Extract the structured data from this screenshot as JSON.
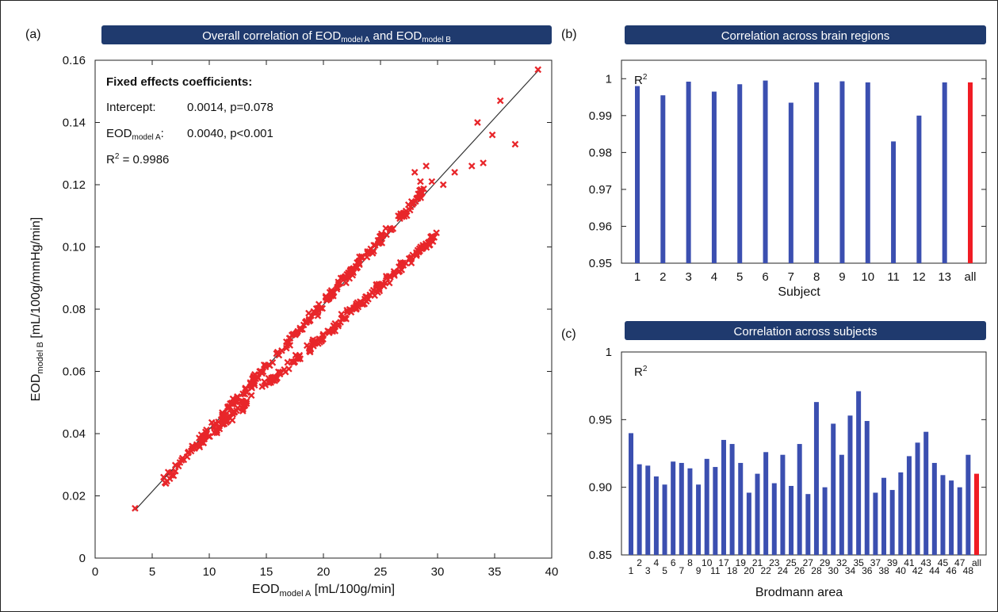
{
  "panel_labels": {
    "a": "(a)",
    "b": "(b)",
    "c": "(c)"
  },
  "colors": {
    "banner": "#1f3a6e",
    "scatter": "#e8262a",
    "bar": "#3b4fb0",
    "highlight": "#f01c24"
  },
  "annotations": {
    "heading": "Fixed effects coefficients:",
    "intercept_label": "Intercept:",
    "intercept_value": "0.0014, p=0.078",
    "slope_label_main": "EOD",
    "slope_label_sub": "model A",
    "slope_label_suffix": ":",
    "slope_value": "0.0040, p<0.001",
    "r2_main": "R",
    "r2_sup": "2",
    "r2_value": " = 0.9986"
  },
  "chart_data": [
    {
      "type": "scatter",
      "title": {
        "pre": "Overall correlation of EOD",
        "sub1": "model A",
        "mid": " and EOD",
        "sub2": "model B"
      },
      "xlabel": {
        "main": "EOD",
        "sub": "model A",
        "rest": " [mL/100g/min]"
      },
      "ylabel": {
        "main": "EOD",
        "sub": "model B",
        "rest": " [mL/100g/mmHg/min]"
      },
      "xlim": [
        0,
        40
      ],
      "ylim": [
        0,
        0.16
      ],
      "xticks": [
        "0",
        "5",
        "10",
        "15",
        "20",
        "25",
        "30",
        "35",
        "40"
      ],
      "yticks": [
        "0",
        "0.02",
        "0.04",
        "0.06",
        "0.08",
        "0.10",
        "0.12",
        "0.14",
        "0.16"
      ],
      "marker": "x",
      "fit_line": {
        "intercept": 0.0014,
        "slope": 0.004,
        "x_range": [
          3.5,
          38.8
        ]
      },
      "clusters": [
        {
          "slope": 0.0041,
          "intercept": 0.0,
          "x_range": [
            6,
            29
          ],
          "spread": 0.0025,
          "count": 260
        },
        {
          "slope": 0.00322,
          "intercept": 0.0072,
          "x_range": [
            8,
            30
          ],
          "spread": 0.0022,
          "count": 220
        }
      ],
      "outliers": [
        [
          3.5,
          0.016
        ],
        [
          6.2,
          0.024
        ],
        [
          6.0,
          0.026
        ],
        [
          8.5,
          0.036
        ],
        [
          38.8,
          0.157
        ],
        [
          35.5,
          0.147
        ],
        [
          33.5,
          0.14
        ],
        [
          34.8,
          0.136
        ],
        [
          36.8,
          0.133
        ],
        [
          34.0,
          0.127
        ],
        [
          33.0,
          0.126
        ],
        [
          31.5,
          0.124
        ],
        [
          30.5,
          0.12
        ],
        [
          29.5,
          0.121
        ],
        [
          28.0,
          0.124
        ],
        [
          28.5,
          0.121
        ],
        [
          29.0,
          0.126
        ]
      ]
    },
    {
      "type": "bar",
      "title": "Correlation across brain regions",
      "ylabel": {
        "main": "R",
        "sup": "2"
      },
      "xlabel": "Subject",
      "categories": [
        "1",
        "2",
        "3",
        "4",
        "5",
        "6",
        "7",
        "8",
        "9",
        "10",
        "11",
        "12",
        "13",
        "all"
      ],
      "values": [
        0.998,
        0.9955,
        0.9992,
        0.9965,
        0.9985,
        0.9995,
        0.9935,
        0.999,
        0.9993,
        0.999,
        0.983,
        0.99,
        0.999,
        0.999
      ],
      "highlight_index": 13,
      "ylim": [
        0.95,
        1.005
      ],
      "yticks": [
        0.95,
        0.96,
        0.97,
        0.98,
        0.99,
        1
      ],
      "ytick_labels": [
        "0.95",
        "0.96",
        "0.97",
        "0.98",
        "0.99",
        "1"
      ]
    },
    {
      "type": "bar",
      "title": "Correlation across subjects",
      "ylabel": {
        "main": "R",
        "sup": "2"
      },
      "xlabel": "Brodmann area",
      "categories": [
        "1",
        "2",
        "3",
        "4",
        "5",
        "6",
        "7",
        "8",
        "9",
        "10",
        "11",
        "17",
        "18",
        "19",
        "20",
        "21",
        "22",
        "23",
        "24",
        "25",
        "26",
        "27",
        "28",
        "29",
        "30",
        "32",
        "34",
        "35",
        "36",
        "37",
        "38",
        "39",
        "40",
        "41",
        "42",
        "43",
        "44",
        "45",
        "46",
        "47",
        "48",
        "all"
      ],
      "values": [
        0.94,
        0.917,
        0.916,
        0.908,
        0.902,
        0.919,
        0.918,
        0.914,
        0.902,
        0.921,
        0.915,
        0.935,
        0.932,
        0.918,
        0.896,
        0.91,
        0.926,
        0.903,
        0.924,
        0.901,
        0.932,
        0.895,
        0.963,
        0.9,
        0.947,
        0.924,
        0.953,
        0.971,
        0.949,
        0.896,
        0.907,
        0.898,
        0.911,
        0.923,
        0.933,
        0.941,
        0.918,
        0.909,
        0.905,
        0.9,
        0.924,
        0.91
      ],
      "highlight_index": 41,
      "ylim": [
        0.85,
        1.0
      ],
      "yticks": [
        0.85,
        0.9,
        0.95,
        1
      ],
      "ytick_labels": [
        "0.85",
        "0.90",
        "0.95",
        "1"
      ]
    }
  ]
}
